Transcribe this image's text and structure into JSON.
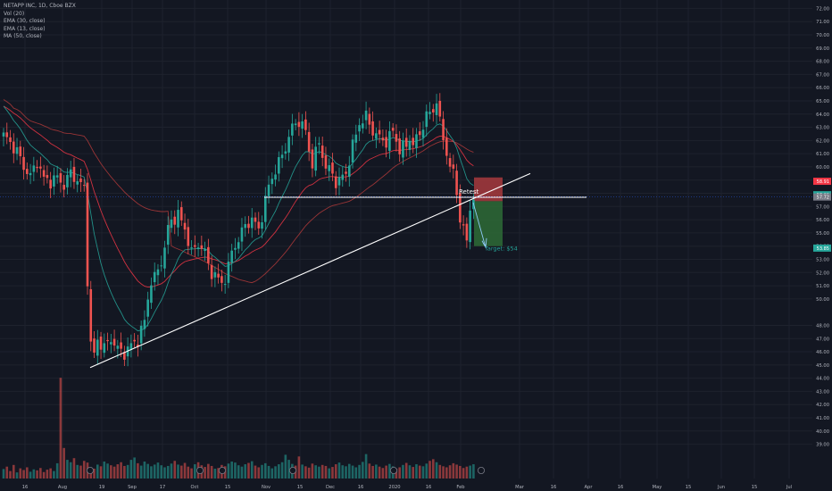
{
  "legend": {
    "symbol": "NETAPP INC, 1D, Cboe BZX",
    "indicators": [
      "Vol (20)",
      "EMA (30, close)",
      "EMA (13, close)",
      "MA (50, close)"
    ]
  },
  "colors": {
    "background": "#131722",
    "grid": "#1e222d",
    "up": "#26a69a",
    "down": "#ef5350",
    "ema13": "#26a69a",
    "ema30": "#f23645",
    "ma50": "#b03a3a",
    "trendline": "#ffffff",
    "target_zone": "#2e6b36",
    "stop_zone": "#a83a3d",
    "axis_text": "#b2b5be"
  },
  "chart_data": {
    "type": "candlestick",
    "y_axis": {
      "ylim": [
        38.5,
        72.5
      ],
      "ticks": [
        39,
        40,
        41,
        42,
        43,
        44,
        45,
        46,
        47,
        48,
        50,
        51,
        52,
        53,
        54,
        55,
        56,
        57,
        58,
        59,
        60,
        61,
        62,
        63,
        64,
        65,
        66,
        67,
        68,
        69,
        70,
        71,
        72
      ],
      "tick_labels": [
        "39.00",
        "40.00",
        "41.00",
        "42.00",
        "43.00",
        "44.00",
        "45.00",
        "46.00",
        "47.00",
        "48.00",
        "50.00",
        "51.00",
        "52.00",
        "53.00",
        "54.00",
        "55.00",
        "56.00",
        "57.00",
        "58.00",
        "59.00",
        "60.00",
        "61.00",
        "62.00",
        "63.00",
        "64.00",
        "65.00",
        "66.00",
        "67.00",
        "68.00",
        "69.00",
        "70.00",
        "71.00",
        "72.00"
      ]
    },
    "x_axis": {
      "tick_labels": [
        "16",
        "Aug",
        "19",
        "Sep",
        "17",
        "Oct",
        "15",
        "Nov",
        "15",
        "Dec",
        "16",
        "2020",
        "16",
        "Feb",
        "Mar",
        "16",
        "Apr",
        "16",
        "May",
        "15",
        "Jun",
        "15",
        "Jul"
      ]
    },
    "price_tags": [
      {
        "label": "58.91",
        "value": 58.91,
        "color": "#f23645"
      },
      {
        "label": "57.89",
        "value": 57.89,
        "color": "#26a69a"
      },
      {
        "label": "57.72",
        "value": 57.72,
        "color": "#787b86"
      },
      {
        "label": "53.85",
        "value": 53.85,
        "color": "#26a69a"
      }
    ],
    "annotations": [
      {
        "text": "Retest"
      },
      {
        "text": "Target: $54"
      }
    ],
    "horizontal_level": 57.7,
    "trendline": {
      "from": {
        "date": "2019-08-05",
        "price": 44.8
      },
      "to": {
        "date": "2020-02-20",
        "price": 59.5
      }
    },
    "position": {
      "entry": 57.4,
      "stop": 59.2,
      "target": 54.0
    },
    "price_path": [
      [
        0,
        62.4
      ],
      [
        2,
        61.8
      ],
      [
        4,
        61.2
      ],
      [
        6,
        60.0
      ],
      [
        8,
        59.3
      ],
      [
        10,
        60.4
      ],
      [
        12,
        59.1
      ],
      [
        14,
        58.9
      ],
      [
        16,
        59.2
      ],
      [
        18,
        58.6
      ],
      [
        20,
        59.6
      ],
      [
        22,
        58.9
      ],
      [
        24,
        58.4
      ],
      [
        25,
        51.5
      ],
      [
        26,
        46.5
      ],
      [
        27,
        45.8
      ],
      [
        28,
        46.9
      ],
      [
        30,
        46.3
      ],
      [
        32,
        47.0
      ],
      [
        34,
        46.2
      ],
      [
        36,
        45.9
      ],
      [
        38,
        46.5
      ],
      [
        40,
        46.9
      ],
      [
        42,
        48.3
      ],
      [
        43,
        50.1
      ],
      [
        44,
        51.3
      ],
      [
        46,
        52.1
      ],
      [
        48,
        53.8
      ],
      [
        49,
        55.4
      ],
      [
        50,
        55.9
      ],
      [
        52,
        56.4
      ],
      [
        54,
        55.3
      ],
      [
        55,
        54.4
      ],
      [
        56,
        53.5
      ],
      [
        58,
        54.2
      ],
      [
        60,
        53.5
      ],
      [
        61,
        52.6
      ],
      [
        62,
        52.0
      ],
      [
        64,
        51.5
      ],
      [
        65,
        51.2
      ],
      [
        66,
        51.6
      ],
      [
        67,
        52.4
      ],
      [
        68,
        53.6
      ],
      [
        70,
        54.5
      ],
      [
        72,
        55.6
      ],
      [
        74,
        56.0
      ],
      [
        76,
        55.3
      ],
      [
        77,
        56.3
      ],
      [
        78,
        57.4
      ],
      [
        79,
        58.6
      ],
      [
        80,
        59.2
      ],
      [
        82,
        60.3
      ],
      [
        84,
        61.5
      ],
      [
        86,
        63.0
      ],
      [
        88,
        63.5
      ],
      [
        90,
        62.7
      ],
      [
        91,
        61.2
      ],
      [
        92,
        60.3
      ],
      [
        94,
        61.8
      ],
      [
        96,
        60.0
      ],
      [
        98,
        59.5
      ],
      [
        99,
        58.8
      ],
      [
        100,
        59.0
      ],
      [
        102,
        59.5
      ],
      [
        104,
        61.6
      ],
      [
        106,
        63.3
      ],
      [
        108,
        63.8
      ],
      [
        110,
        62.7
      ],
      [
        112,
        62.2
      ],
      [
        114,
        61.9
      ],
      [
        116,
        62.7
      ],
      [
        118,
        61.3
      ],
      [
        120,
        61.6
      ],
      [
        121,
        62.2
      ],
      [
        122,
        61.7
      ],
      [
        124,
        62.5
      ],
      [
        126,
        63.9
      ],
      [
        128,
        64.2
      ],
      [
        129,
        65.2
      ],
      [
        130,
        63.3
      ],
      [
        131,
        62.1
      ],
      [
        132,
        61.0
      ],
      [
        133,
        60.2
      ],
      [
        134,
        59.4
      ],
      [
        135,
        58.0
      ],
      [
        136,
        56.1
      ],
      [
        137,
        55.4
      ],
      [
        138,
        54.2
      ],
      [
        139,
        56.8
      ],
      [
        140,
        57.9
      ]
    ],
    "volume": [
      28,
      35,
      22,
      40,
      18,
      30,
      25,
      33,
      20,
      27,
      24,
      31,
      19,
      26,
      30,
      22,
      45,
      260,
      90,
      55,
      48,
      60,
      40,
      38,
      52,
      47,
      33,
      29,
      41,
      36,
      50,
      44,
      39,
      35,
      42,
      48,
      37,
      40,
      55,
      62,
      45,
      38,
      50,
      43,
      36,
      41,
      47,
      39,
      33,
      37,
      44,
      52,
      41,
      38,
      46,
      35,
      30,
      42,
      48,
      39,
      34,
      43,
      37,
      29,
      31,
      40,
      36,
      44,
      50,
      47,
      39,
      35,
      42,
      46,
      51,
      38,
      33,
      40,
      45,
      37,
      30,
      36,
      42,
      48,
      70,
      55,
      43,
      38,
      65,
      41,
      36,
      32,
      44,
      39,
      35,
      40,
      37,
      30,
      34,
      42,
      47,
      39,
      36,
      43,
      38,
      33,
      40,
      49,
      72,
      44,
      37,
      41,
      35,
      31,
      38,
      43,
      36,
      29,
      33,
      40,
      46,
      39,
      34,
      42,
      38,
      36,
      44,
      52,
      57,
      48,
      40,
      36,
      33,
      39,
      45,
      41,
      37,
      31,
      35,
      38,
      42
    ]
  }
}
